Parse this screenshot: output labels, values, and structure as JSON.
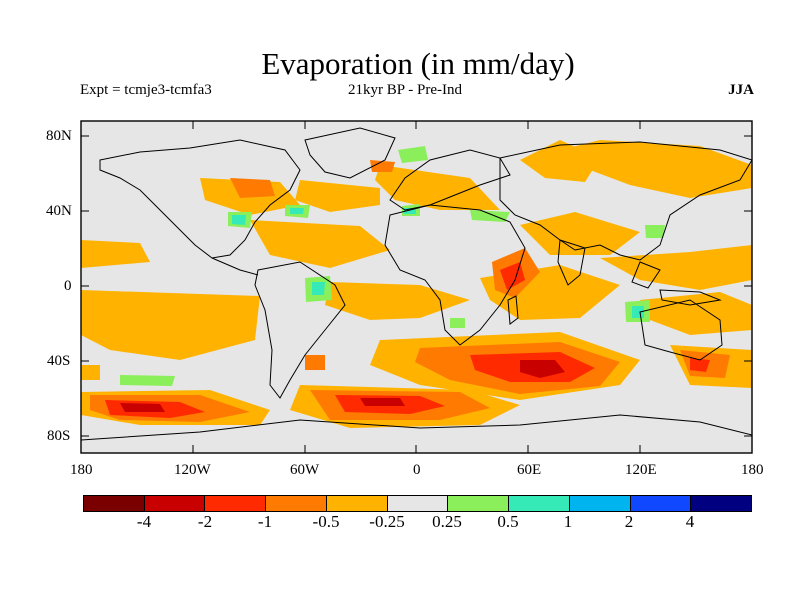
{
  "title": "Evaporation (in mm/day)",
  "experiment": "Expt = tcmje3-tcmfa3",
  "period": "21kyr BP - Pre-Ind",
  "season": "JJA",
  "lat_ticks": [
    "80N",
    "40N",
    "0",
    "40S",
    "80S"
  ],
  "lon_ticks": [
    "180",
    "120W",
    "60W",
    "0",
    "60E",
    "120E",
    "180"
  ],
  "colorbar": {
    "colors": [
      "#7a0000",
      "#c90000",
      "#ff2a00",
      "#ff7a00",
      "#ffb300",
      "#e6e6e6",
      "#8aef5a",
      "#35eab6",
      "#00b4f0",
      "#0f48ff",
      "#000080"
    ],
    "labels": [
      "-4",
      "-2",
      "-1",
      "-0.5",
      "-0.25",
      "0.25",
      "0.5",
      "1",
      "2",
      "4"
    ]
  },
  "colors": {
    "background": "#e6e6e6",
    "coastline": "#000000"
  }
}
